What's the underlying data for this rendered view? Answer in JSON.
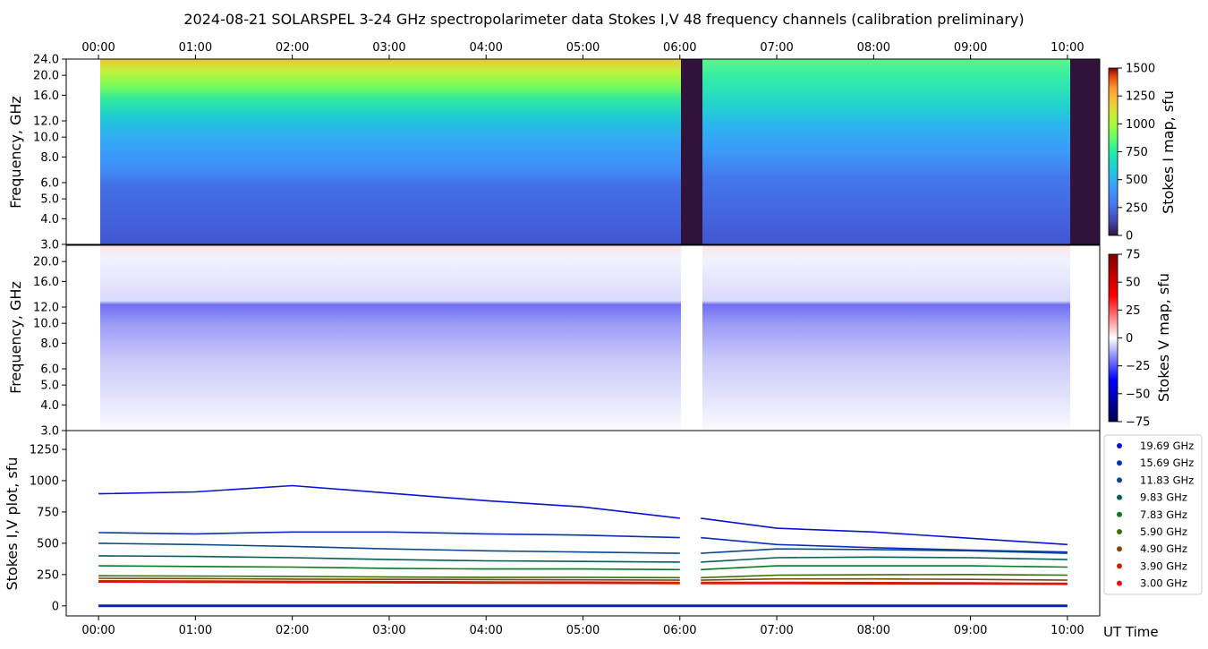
{
  "title": "2024-08-21  SOLARSPEL  3-24 GHz spectropolarimeter data   Stokes I,V   48 frequency channels   (calibration preliminary)",
  "chart_data": [
    {
      "type": "heatmap",
      "panel": "stokes_i_map",
      "ylabel": "Frequency, GHz",
      "y_scale": "log",
      "y_ticks": [
        "3.0",
        "4.0",
        "5.0",
        "6.0",
        "8.0",
        "10.0",
        "12.0",
        "16.0",
        "20.0",
        "24.0"
      ],
      "y_tick_values": [
        3,
        4,
        5,
        6,
        8,
        10,
        12,
        16,
        20,
        24
      ],
      "ylim": [
        3,
        24
      ],
      "colorbar": {
        "label": "Stokes I map, sfu",
        "ticks": [
          "0",
          "250",
          "500",
          "750",
          "1000",
          "1250",
          "1500"
        ],
        "range": [
          0,
          1500
        ],
        "colormap": "turbo"
      },
      "data_gaps": [
        [
          "06:00",
          "06:13"
        ],
        [
          "10:02",
          "10:20"
        ]
      ]
    },
    {
      "type": "heatmap",
      "panel": "stokes_v_map",
      "ylabel": "Frequency, GHz",
      "y_scale": "log",
      "y_ticks": [
        "3.0",
        "4.0",
        "5.0",
        "6.0",
        "8.0",
        "10.0",
        "12.0",
        "16.0",
        "20.0"
      ],
      "y_tick_values": [
        3,
        4,
        5,
        6,
        8,
        10,
        12,
        16,
        20
      ],
      "ylim": [
        3,
        24
      ],
      "colorbar": {
        "label": "Stokes V map, sfu",
        "ticks": [
          "75",
          "50",
          "25",
          "0",
          "−25",
          "−50",
          "−75"
        ],
        "range": [
          -75,
          75
        ],
        "colormap": "seismic"
      }
    },
    {
      "type": "line",
      "panel": "stokes_iv_plot",
      "ylabel": "Stokes I,V plot, sfu",
      "xlabel": "UT Time",
      "x_ticks": [
        "00:00",
        "01:00",
        "02:00",
        "03:00",
        "04:00",
        "05:00",
        "06:00",
        "07:00",
        "08:00",
        "09:00",
        "10:00"
      ],
      "xlim": [
        "-00:20",
        "10:20"
      ],
      "y_ticks": [
        "0",
        "250",
        "500",
        "750",
        "1000",
        "1250"
      ],
      "y_tick_values": [
        0,
        250,
        500,
        750,
        1000,
        1250
      ],
      "ylim": [
        -80,
        1400
      ],
      "x": [
        "00:00",
        "01:00",
        "02:00",
        "03:00",
        "04:00",
        "05:00",
        "06:00",
        "07:00",
        "08:00",
        "09:00",
        "10:00"
      ],
      "series": [
        {
          "name": "19.69 GHz",
          "color": "#0a14d0",
          "values": [
            895,
            910,
            960,
            900,
            840,
            790,
            700,
            620,
            590,
            540,
            490
          ]
        },
        {
          "name": "15.69 GHz",
          "color": "#0a30b8",
          "values": [
            585,
            575,
            590,
            590,
            575,
            565,
            545,
            490,
            465,
            445,
            430
          ]
        },
        {
          "name": "11.83 GHz",
          "color": "#0b4a86",
          "values": [
            500,
            490,
            475,
            455,
            440,
            430,
            420,
            455,
            450,
            440,
            420
          ]
        },
        {
          "name": "9.83 GHz",
          "color": "#0b5e55",
          "values": [
            400,
            395,
            385,
            370,
            360,
            355,
            350,
            385,
            390,
            385,
            370
          ]
        },
        {
          "name": "7.83 GHz",
          "color": "#0c7a24",
          "values": [
            320,
            315,
            310,
            300,
            295,
            295,
            290,
            320,
            320,
            320,
            310
          ]
        },
        {
          "name": "5.90 GHz",
          "color": "#3b6e0a",
          "values": [
            240,
            238,
            235,
            230,
            228,
            228,
            225,
            245,
            248,
            250,
            245
          ]
        },
        {
          "name": "4.90 GHz",
          "color": "#7a4a08",
          "values": [
            220,
            218,
            214,
            212,
            210,
            208,
            205,
            215,
            215,
            212,
            205
          ]
        },
        {
          "name": "3.90 GHz",
          "color": "#c02806",
          "values": [
            200,
            198,
            196,
            194,
            192,
            190,
            188,
            188,
            186,
            184,
            180
          ]
        },
        {
          "name": "3.00 GHz",
          "color": "#e01010",
          "values": [
            190,
            188,
            186,
            184,
            182,
            180,
            178,
            178,
            176,
            175,
            172
          ]
        }
      ],
      "stokes_v_traces_near": 0,
      "legend_position": "right"
    }
  ]
}
